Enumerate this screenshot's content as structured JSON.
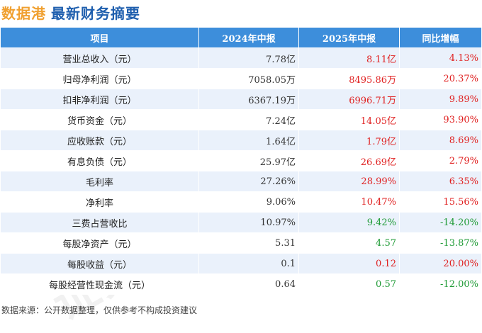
{
  "header": {
    "brand": "数据港",
    "title": "最新财务摘要"
  },
  "table": {
    "columns": [
      "项目",
      "2024年中报",
      "2025年中报",
      "同比增幅"
    ],
    "rows": [
      {
        "item": "营业总收入（元）",
        "v2024": "7.78亿",
        "v2025": "8.11亿",
        "change": "4.13%",
        "trend": "up"
      },
      {
        "item": "归母净利润（元）",
        "v2024": "7058.05万",
        "v2025": "8495.86万",
        "change": "20.37%",
        "trend": "up"
      },
      {
        "item": "扣非净利润（元）",
        "v2024": "6367.19万",
        "v2025": "6996.71万",
        "change": "9.89%",
        "trend": "up"
      },
      {
        "item": "货币资金（元）",
        "v2024": "7.24亿",
        "v2025": "14.05亿",
        "change": "93.90%",
        "trend": "up"
      },
      {
        "item": "应收账款（元）",
        "v2024": "1.64亿",
        "v2025": "1.79亿",
        "change": "8.69%",
        "trend": "up"
      },
      {
        "item": "有息负债（元）",
        "v2024": "25.97亿",
        "v2025": "26.69亿",
        "change": "2.79%",
        "trend": "up"
      },
      {
        "item": "毛利率",
        "v2024": "27.26%",
        "v2025": "28.99%",
        "change": "6.35%",
        "trend": "up"
      },
      {
        "item": "净利率",
        "v2024": "9.06%",
        "v2025": "10.47%",
        "change": "15.56%",
        "trend": "up"
      },
      {
        "item": "三费占营收比",
        "v2024": "10.97%",
        "v2025": "9.42%",
        "change": "-14.20%",
        "trend": "down"
      },
      {
        "item": "每股净资产（元）",
        "v2024": "5.31",
        "v2025": "4.57",
        "change": "-13.87%",
        "trend": "down"
      },
      {
        "item": "每股收益（元）",
        "v2024": "0.1",
        "v2025": "0.12",
        "change": "20.00%",
        "trend": "up"
      },
      {
        "item": "每股经营性现金流（元）",
        "v2024": "0.64",
        "v2025": "0.57",
        "change": "-12.00%",
        "trend": "down"
      }
    ]
  },
  "footer": {
    "source": "数据来源：公开数据整理，仅供参考不构成投资建议"
  },
  "watermark": {
    "text": "证券之星"
  },
  "colors": {
    "header_bg": "#3d8edb",
    "up": "#e02020",
    "down": "#1e9a35",
    "brand": "#f0a030",
    "title": "#1f5fae"
  }
}
